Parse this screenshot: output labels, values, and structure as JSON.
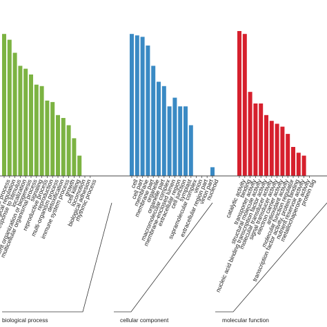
{
  "chart_data": {
    "type": "bar",
    "title": "",
    "xlabel": "",
    "ylabel": "",
    "ylim": [
      0,
      100
    ],
    "grid": false,
    "series": [
      {
        "name": "biological process",
        "color": "#7cb342",
        "categories": [
          "cellular process",
          "biological regulation",
          "response to stimulus",
          "localization",
          "cellular component organization or biogenesis",
          "multicellular organismal process",
          "signaling",
          "reproductive process",
          "reproduction",
          "multi-organism process",
          "detoxification",
          "immune system process",
          "growth",
          "cell killing",
          "locomotion",
          "biological adhesion",
          "rhythmic process"
        ],
        "values": [
          98,
          94,
          85,
          76,
          74,
          70,
          63,
          62,
          52,
          51,
          42,
          40,
          35,
          26,
          14,
          0,
          0
        ]
      },
      {
        "name": "cellular component",
        "color": "#3a8ac4",
        "categories": [
          "cell",
          "cell part",
          "membrane",
          "membrane part",
          "organelle",
          "organelle part",
          "macromolecular complex",
          "membrane-enclosed lumen",
          "extracellular region",
          "cell junction",
          "symplast",
          "supramolecular complex",
          "virion",
          "extracellular region part",
          "virion part",
          "nucleoid"
        ],
        "values": [
          98,
          97,
          96,
          90,
          76,
          65,
          62,
          48,
          54,
          48,
          48,
          35,
          0,
          0,
          0,
          6
        ]
      },
      {
        "name": "molecular function",
        "color": "#d6202d",
        "categories": [
          "catalytic activity",
          "binding",
          "transporter activity",
          "structural molecule activity",
          "nucleic acid binding transcription factor activity",
          "molecular transducer activity",
          "signal transducer activity",
          "electron carrier activity",
          "antioxidant activity",
          "molecular function regulator",
          "transcription factor activity, protein binding",
          "nutrient reservoir activity",
          "metallochaperone activity",
          "protein tag"
        ],
        "values": [
          100,
          98,
          58,
          50,
          50,
          42,
          38,
          36,
          34,
          29,
          20,
          16,
          14,
          0
        ]
      }
    ],
    "group_labels": [
      "biological process",
      "cellular component",
      "molecular function"
    ]
  }
}
